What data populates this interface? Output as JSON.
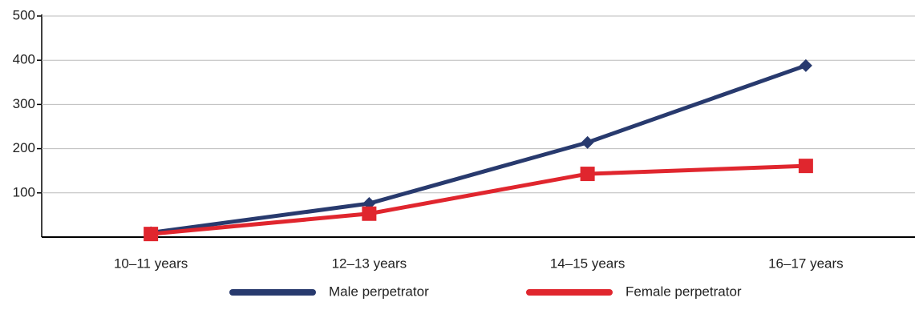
{
  "chart_data": {
    "type": "line",
    "categories": [
      "10–11 years",
      "12–13 years",
      "14–15 years",
      "16–17 years"
    ],
    "series": [
      {
        "name": "Male perpetrator",
        "color": "#283a6e",
        "marker": "diamond",
        "values": [
          10,
          76,
          214,
          388
        ]
      },
      {
        "name": "Female perpetrator",
        "color": "#e0262e",
        "marker": "square",
        "values": [
          7,
          53,
          143,
          161
        ]
      }
    ],
    "ylim": [
      0,
      500
    ],
    "yticks": [
      100,
      200,
      300,
      400,
      500
    ],
    "grid": true
  }
}
